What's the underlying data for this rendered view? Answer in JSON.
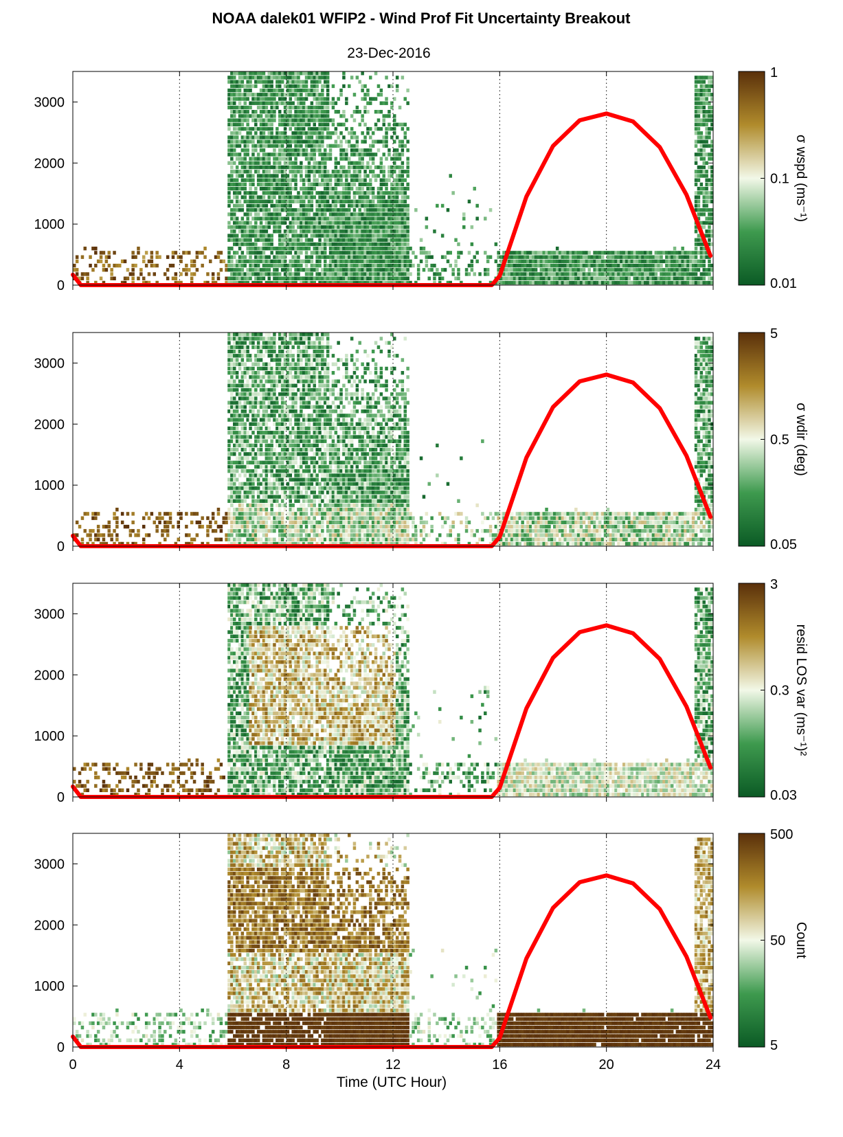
{
  "title": "NOAA dalek01 WFIP2 - Wind Prof Fit Uncertainty Breakout",
  "subtitle": "23-Dec-2016",
  "chart_data": {
    "type": "heatmap",
    "xlabel": "Time (UTC Hour)",
    "xlim": [
      0,
      24
    ],
    "xticks": [
      "0",
      "4",
      "8",
      "12",
      "16",
      "20",
      "24"
    ],
    "ylim": [
      0,
      3500
    ],
    "yticks": [
      "0",
      "1000",
      "2000",
      "3000"
    ],
    "grid": "vertical dotted lines at 4-hour intervals",
    "colormap": "green-white-brown",
    "colors": {
      "low": "#0b5a25",
      "mid": "#f2f8e8",
      "high": "#5a300a",
      "overlay": "#ff0000"
    },
    "panels": [
      {
        "id": "wspd",
        "colorbar_label": "σ wspd (ms⁻¹)",
        "cbar_ticks": [
          "1",
          "0.1",
          "0.01"
        ],
        "scale": "log"
      },
      {
        "id": "wdir",
        "colorbar_label": "σ wdir (deg)",
        "cbar_ticks": [
          "5",
          "0.5",
          "0.05"
        ],
        "scale": "log"
      },
      {
        "id": "resid",
        "colorbar_label": "resid LOS var (ms⁻¹)²",
        "cbar_ticks": [
          "3",
          "0.3",
          "0.03"
        ],
        "scale": "log"
      },
      {
        "id": "count",
        "colorbar_label": "Count",
        "cbar_ticks": [
          "500",
          "50",
          "5"
        ],
        "scale": "log"
      }
    ],
    "overlay": {
      "type": "line",
      "color": "#ff0000",
      "x": [
        0,
        0.3,
        15.7,
        16,
        17,
        18,
        19,
        20,
        21,
        22,
        23,
        23.9
      ],
      "y": [
        170,
        0,
        0,
        150,
        1450,
        2280,
        2700,
        2810,
        2680,
        2260,
        1480,
        480
      ]
    },
    "data_extent": [
      {
        "x0": 0,
        "x1": 5.7,
        "ymax": 600,
        "level": "sparse"
      },
      {
        "x0": 5.7,
        "x1": 12.5,
        "ymax": 3450,
        "level": "dense"
      },
      {
        "x0": 12.5,
        "x1": 15.8,
        "ymax": 1750,
        "level": "sparse"
      },
      {
        "x0": 15.8,
        "x1": 23.3,
        "ymax": 600,
        "level": "dense-low"
      },
      {
        "x0": 23.3,
        "x1": 24,
        "ymax": 3400,
        "level": "dense"
      }
    ]
  }
}
